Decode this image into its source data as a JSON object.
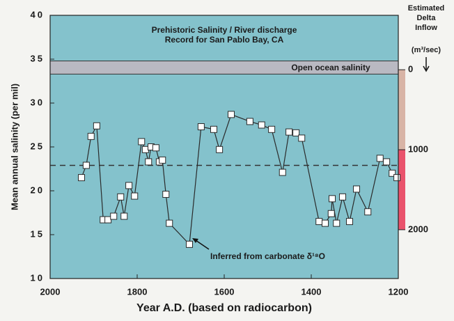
{
  "chart_data": {
    "type": "line",
    "title": [
      "Prehistoric Salinity / River discharge",
      "Record for San Pablo Bay, CA"
    ],
    "xlabel": "Year A.D. (based on radiocarbon)",
    "ylabel": "Mean annual salinity (per mil)",
    "y2label": [
      "Estimated",
      "Delta",
      "Inflow",
      "(m³/sec)"
    ],
    "xlim": [
      2000,
      1200
    ],
    "xticks": [
      2000,
      1800,
      1600,
      1400,
      1200
    ],
    "ylim": [
      10,
      40
    ],
    "yticks": [
      10,
      15,
      20,
      25,
      30,
      35,
      40
    ],
    "y2lim": [
      -680,
      2610
    ],
    "y2ticks": [
      0,
      1000,
      2000
    ],
    "y2_colors": [
      "#d8b4a6",
      "#e9536c"
    ],
    "reference_band": {
      "label": "Open ocean salinity",
      "range": [
        33.3,
        34.8
      ],
      "color": "#b9b9c2"
    },
    "reference_line": 22.9,
    "annotation": "Inferred from carbonate δ¹⁸O",
    "background": "#84c2cc",
    "series": [
      {
        "color": "#2a2a2a",
        "x": [
          1928,
          1917,
          1906,
          1893,
          1878,
          1867,
          1854,
          1838,
          1830,
          1819,
          1806,
          1790,
          1781,
          1774,
          1768,
          1757,
          1749,
          1742,
          1734,
          1726,
          1680,
          1653,
          1624,
          1611,
          1584,
          1541,
          1514,
          1491,
          1466,
          1451,
          1435,
          1422,
          1382,
          1368,
          1354,
          1352,
          1342,
          1328,
          1312,
          1296,
          1270,
          1242,
          1227,
          1214,
          1203
        ],
        "values": [
          21.5,
          22.9,
          26.2,
          27.4,
          16.7,
          16.7,
          17.1,
          19.3,
          17.1,
          20.6,
          19.4,
          25.6,
          24.7,
          23.3,
          25.0,
          24.9,
          23.3,
          23.5,
          19.6,
          16.3,
          13.9,
          27.3,
          27.0,
          24.7,
          28.7,
          27.9,
          27.5,
          27.0,
          22.1,
          26.7,
          26.6,
          26.0,
          16.5,
          16.3,
          17.4,
          19.1,
          16.3,
          19.3,
          16.5,
          20.2,
          17.6,
          23.7,
          23.3,
          22.0,
          21.5
        ]
      }
    ]
  }
}
